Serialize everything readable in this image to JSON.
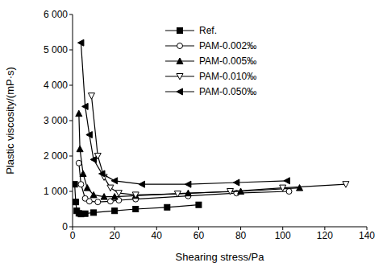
{
  "chart_data": {
    "type": "line",
    "xlabel": "Shearing stress/Pa",
    "ylabel": "Plastic viscosity/(mP·s)",
    "xlim": [
      0,
      140
    ],
    "xticks": [
      0,
      20,
      40,
      60,
      80,
      100,
      120,
      140
    ],
    "ylim": [
      0,
      6000
    ],
    "yticks": [
      0,
      {
        "value": 1000,
        "label": "1 000"
      },
      {
        "value": 2000,
        "label": "2 000"
      },
      {
        "value": 3000,
        "label": "3 000"
      },
      {
        "value": 4000,
        "label": "4 000"
      },
      {
        "value": 5000,
        "label": "5 000"
      },
      {
        "value": 6000,
        "label": "6 000"
      }
    ],
    "grid": false,
    "legend": "upper center",
    "series": [
      {
        "name": "Ref.",
        "color": "#000000",
        "marker": "square",
        "x": [
          1,
          1.5,
          2,
          3,
          4,
          6,
          10,
          20,
          30,
          45,
          60
        ],
        "values": [
          1200,
          700,
          450,
          380,
          360,
          370,
          400,
          450,
          500,
          550,
          620
        ]
      },
      {
        "name": "PAM-0.002‰",
        "color": "#000000",
        "marker": "circle_open",
        "x": [
          3,
          4,
          6,
          8,
          12,
          18,
          22,
          30,
          55,
          78,
          103
        ],
        "values": [
          1800,
          1200,
          800,
          720,
          700,
          720,
          750,
          780,
          870,
          950,
          1000
        ]
      },
      {
        "name": "PAM-0.005‰",
        "color": "#000000",
        "marker": "triangle",
        "x": [
          3,
          3.5,
          5,
          7,
          10,
          15,
          20,
          30,
          55,
          80,
          108
        ],
        "values": [
          3200,
          2200,
          1500,
          1100,
          900,
          850,
          850,
          880,
          950,
          1000,
          1100
        ]
      },
      {
        "name": "PAM-0.010‰",
        "color": "#000000",
        "marker": "triangle_down_open",
        "x": [
          9,
          12,
          15,
          18,
          22,
          30,
          50,
          75,
          100,
          130
        ],
        "values": [
          3700,
          2000,
          1400,
          1100,
          950,
          900,
          930,
          1000,
          1100,
          1200
        ]
      },
      {
        "name": "PAM-0.050‰",
        "color": "#000000",
        "marker": "triangle_left",
        "x": [
          4,
          6,
          8,
          10,
          14,
          20,
          33,
          55,
          78,
          102
        ],
        "values": [
          5200,
          3400,
          2600,
          1900,
          1500,
          1300,
          1200,
          1200,
          1250,
          1300
        ]
      }
    ]
  }
}
